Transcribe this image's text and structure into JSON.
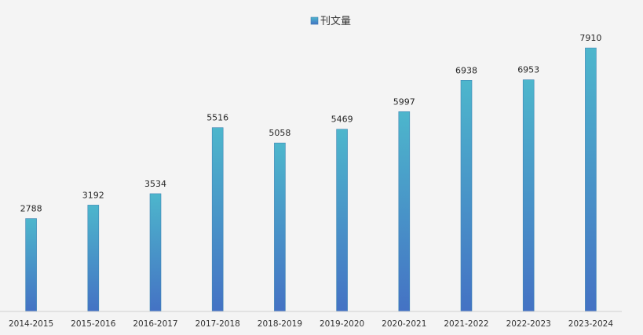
{
  "chart_data": {
    "type": "bar",
    "categories": [
      "2014-2015",
      "2015-2016",
      "2016-2017",
      "2017-2018",
      "2018-2019",
      "2019-2020",
      "2020-2021",
      "2021-2022",
      "2022-2023",
      "2023-2024"
    ],
    "series": [
      {
        "name": "刊文量",
        "values": [
          2788,
          3192,
          3534,
          5516,
          5058,
          5469,
          5997,
          6938,
          6953,
          7910
        ]
      }
    ],
    "ylim": [
      0,
      8500
    ],
    "grid": false,
    "legend_position": "top-center",
    "data_labels": true,
    "colors": {
      "bar_top": "#4db6cc",
      "bar_bottom": "#4472c4",
      "axis": "#d0d0d0"
    }
  }
}
